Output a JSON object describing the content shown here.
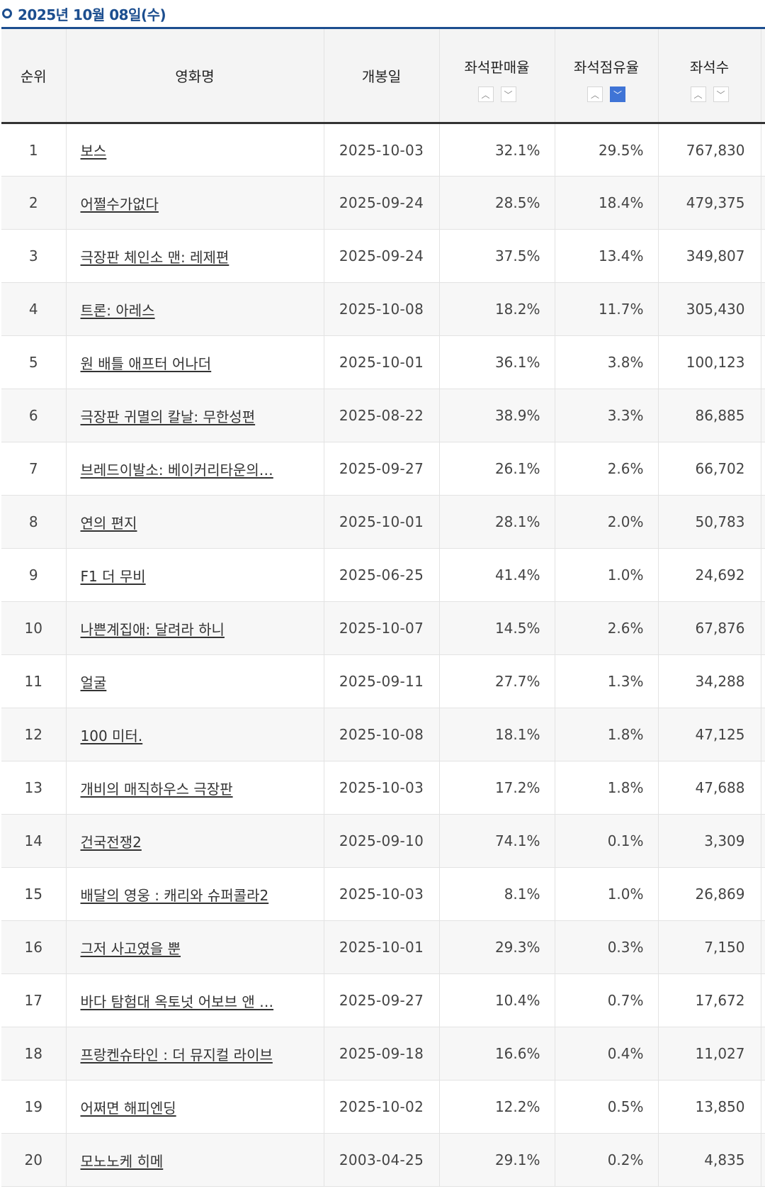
{
  "header": {
    "date_label": "2025년 10월 08일(수)"
  },
  "table": {
    "columns": {
      "rank": "순위",
      "title": "영화명",
      "release": "개봉일",
      "seat_sales_rate": "좌석판매율",
      "seat_share": "좌석점유율",
      "seats": "좌석수"
    },
    "sort_icons": {
      "up": "chevron-up-icon",
      "down": "chevron-down-icon"
    },
    "active_sort": "seat_share-desc",
    "colors": {
      "accent": "#1c4e8f",
      "active_sort": "#3f74d6"
    },
    "rows": [
      {
        "rank": "1",
        "title": "보스",
        "release": "2025-10-03",
        "sales": "32.1%",
        "share": "29.5%",
        "seats": "767,830"
      },
      {
        "rank": "2",
        "title": "어쩔수가없다",
        "release": "2025-09-24",
        "sales": "28.5%",
        "share": "18.4%",
        "seats": "479,375"
      },
      {
        "rank": "3",
        "title": "극장판 체인소 맨: 레제편",
        "release": "2025-09-24",
        "sales": "37.5%",
        "share": "13.4%",
        "seats": "349,807"
      },
      {
        "rank": "4",
        "title": "트론: 아레스",
        "release": "2025-10-08",
        "sales": "18.2%",
        "share": "11.7%",
        "seats": "305,430"
      },
      {
        "rank": "5",
        "title": "원 배틀 애프터 어나더",
        "release": "2025-10-01",
        "sales": "36.1%",
        "share": "3.8%",
        "seats": "100,123"
      },
      {
        "rank": "6",
        "title": "극장판 귀멸의 칼날: 무한성편",
        "release": "2025-08-22",
        "sales": "38.9%",
        "share": "3.3%",
        "seats": "86,885"
      },
      {
        "rank": "7",
        "title": "브레드이발소: 베이커리타운의…",
        "release": "2025-09-27",
        "sales": "26.1%",
        "share": "2.6%",
        "seats": "66,702"
      },
      {
        "rank": "8",
        "title": "연의 편지",
        "release": "2025-10-01",
        "sales": "28.1%",
        "share": "2.0%",
        "seats": "50,783"
      },
      {
        "rank": "9",
        "title": "F1 더 무비",
        "release": "2025-06-25",
        "sales": "41.4%",
        "share": "1.0%",
        "seats": "24,692"
      },
      {
        "rank": "10",
        "title": "나쁜계집애: 달려라 하니",
        "release": "2025-10-07",
        "sales": "14.5%",
        "share": "2.6%",
        "seats": "67,876"
      },
      {
        "rank": "11",
        "title": "얼굴",
        "release": "2025-09-11",
        "sales": "27.7%",
        "share": "1.3%",
        "seats": "34,288"
      },
      {
        "rank": "12",
        "title": "100 미터.",
        "release": "2025-10-08",
        "sales": "18.1%",
        "share": "1.8%",
        "seats": "47,125"
      },
      {
        "rank": "13",
        "title": "개비의 매직하우스 극장판",
        "release": "2025-10-03",
        "sales": "17.2%",
        "share": "1.8%",
        "seats": "47,688"
      },
      {
        "rank": "14",
        "title": "건국전쟁2",
        "release": "2025-09-10",
        "sales": "74.1%",
        "share": "0.1%",
        "seats": "3,309"
      },
      {
        "rank": "15",
        "title": "배달의 영웅 : 캐리와 슈퍼콜라2",
        "release": "2025-10-03",
        "sales": "8.1%",
        "share": "1.0%",
        "seats": "26,869"
      },
      {
        "rank": "16",
        "title": "그저 사고였을 뿐",
        "release": "2025-10-01",
        "sales": "29.3%",
        "share": "0.3%",
        "seats": "7,150"
      },
      {
        "rank": "17",
        "title": "바다 탐험대 옥토넛 어보브 앤 …",
        "release": "2025-09-27",
        "sales": "10.4%",
        "share": "0.7%",
        "seats": "17,672"
      },
      {
        "rank": "18",
        "title": "프랑켄슈타인 : 더 뮤지컬 라이브",
        "release": "2025-09-18",
        "sales": "16.6%",
        "share": "0.4%",
        "seats": "11,027"
      },
      {
        "rank": "19",
        "title": "어쩌면 해피엔딩",
        "release": "2025-10-02",
        "sales": "12.2%",
        "share": "0.5%",
        "seats": "13,850"
      },
      {
        "rank": "20",
        "title": "모노노케 히메",
        "release": "2003-04-25",
        "sales": "29.1%",
        "share": "0.2%",
        "seats": "4,835"
      }
    ]
  }
}
